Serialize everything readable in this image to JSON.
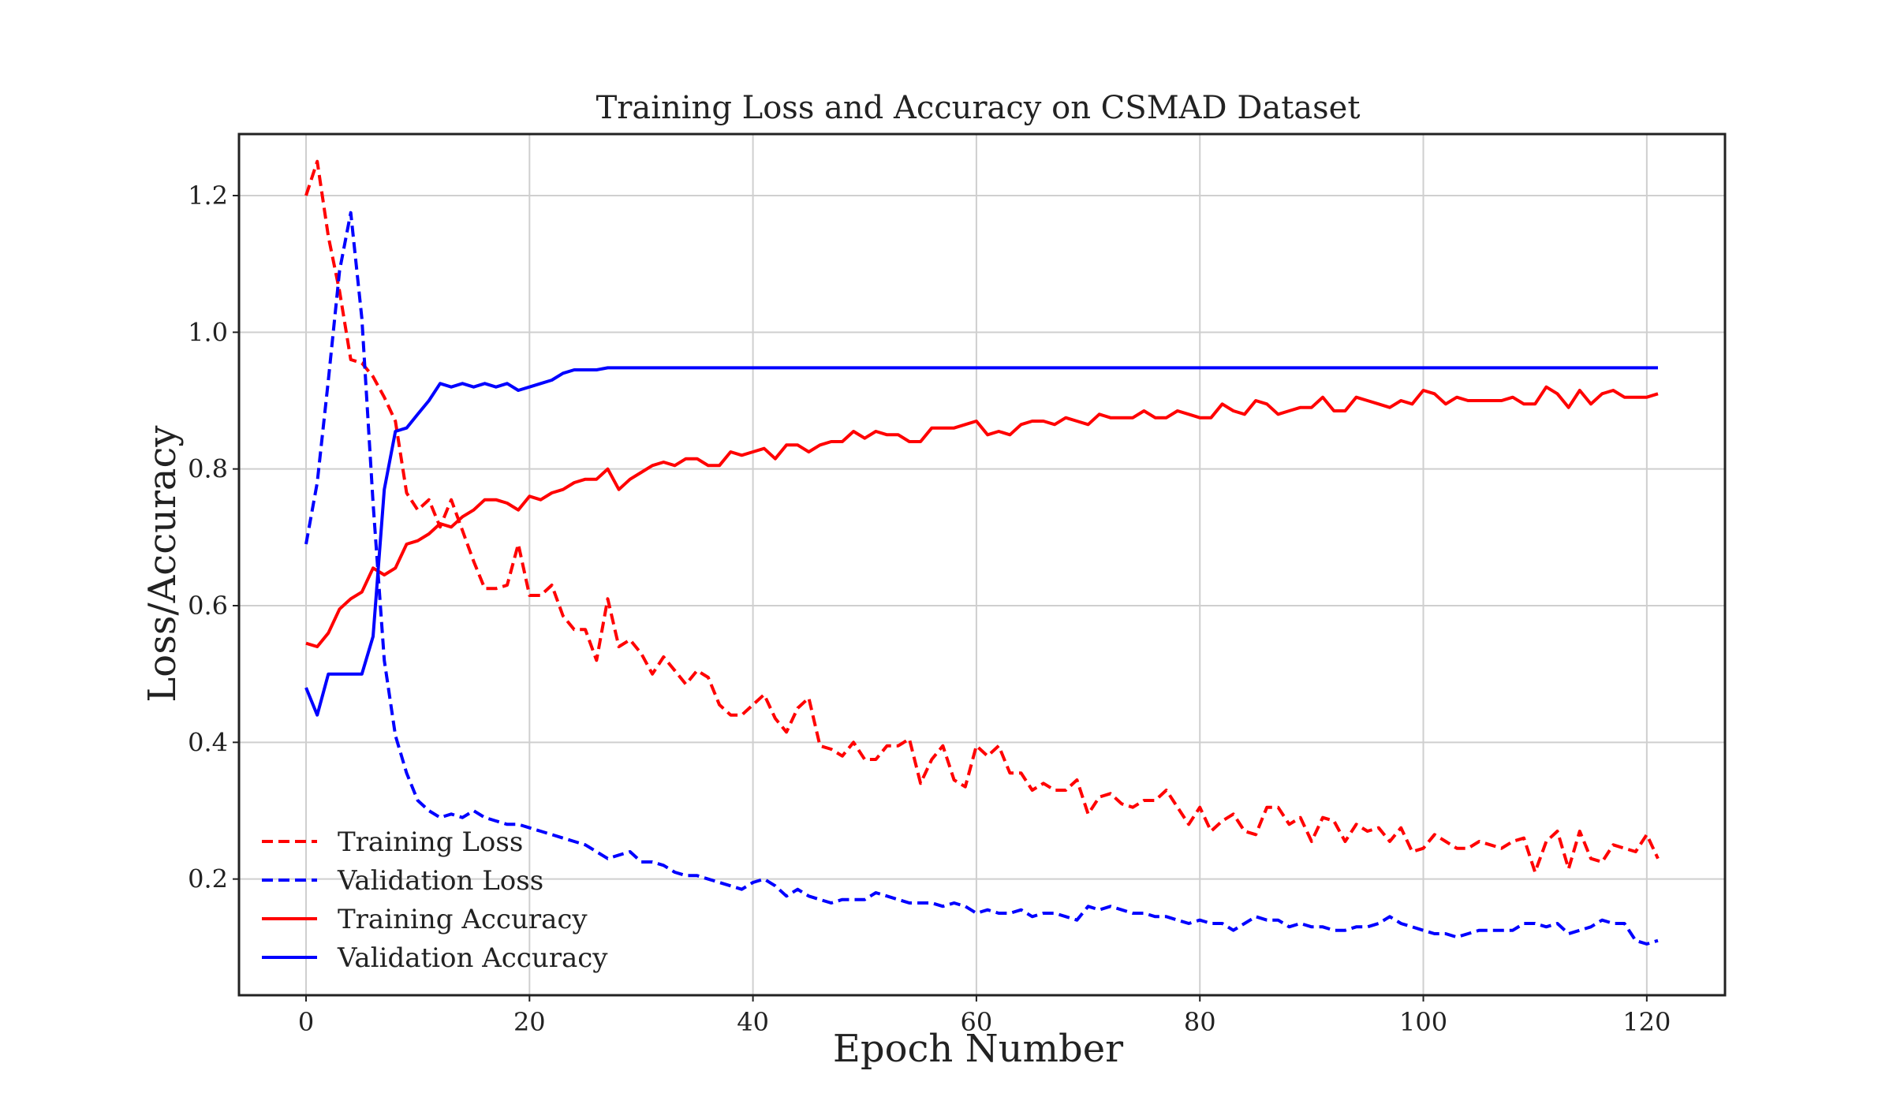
{
  "chart_data": {
    "type": "line",
    "title": "Training Loss and Accuracy on CSMAD Dataset",
    "xlabel": "Epoch Number",
    "ylabel": "Loss/Accuracy",
    "xlim": [
      -6,
      127
    ],
    "ylim": [
      0.03,
      1.29
    ],
    "x_ticks": [
      0,
      20,
      40,
      60,
      80,
      100,
      120
    ],
    "y_ticks": [
      0.2,
      0.4,
      0.6,
      0.8,
      1.0,
      1.2
    ],
    "x_tick_labels": [
      "0",
      "20",
      "40",
      "60",
      "80",
      "100",
      "120"
    ],
    "y_tick_labels": [
      "0.2",
      "0.4",
      "0.6",
      "0.8",
      "1.0",
      "1.2"
    ],
    "grid": true,
    "legend_position": "lower-left",
    "series": [
      {
        "name": "Training Loss",
        "color": "#ff0000",
        "dash": "dashed",
        "values": [
          1.2,
          1.25,
          1.14,
          1.06,
          0.96,
          0.955,
          0.935,
          0.905,
          0.87,
          0.765,
          0.74,
          0.755,
          0.715,
          0.755,
          0.71,
          0.665,
          0.625,
          0.625,
          0.63,
          0.69,
          0.615,
          0.615,
          0.63,
          0.585,
          0.565,
          0.565,
          0.52,
          0.61,
          0.54,
          0.55,
          0.53,
          0.5,
          0.525,
          0.505,
          0.485,
          0.505,
          0.495,
          0.455,
          0.44,
          0.44,
          0.455,
          0.47,
          0.435,
          0.415,
          0.45,
          0.465,
          0.395,
          0.39,
          0.38,
          0.4,
          0.375,
          0.375,
          0.395,
          0.395,
          0.405,
          0.34,
          0.375,
          0.395,
          0.345,
          0.335,
          0.395,
          0.38,
          0.395,
          0.355,
          0.355,
          0.33,
          0.34,
          0.33,
          0.33,
          0.345,
          0.295,
          0.32,
          0.325,
          0.31,
          0.305,
          0.315,
          0.315,
          0.33,
          0.305,
          0.28,
          0.305,
          0.27,
          0.285,
          0.295,
          0.27,
          0.265,
          0.305,
          0.305,
          0.28,
          0.29,
          0.255,
          0.29,
          0.285,
          0.255,
          0.28,
          0.27,
          0.275,
          0.255,
          0.275,
          0.24,
          0.245,
          0.265,
          0.255,
          0.245,
          0.245,
          0.255,
          0.25,
          0.245,
          0.255,
          0.26,
          0.21,
          0.255,
          0.27,
          0.215,
          0.27,
          0.23,
          0.225,
          0.25,
          0.245,
          0.24,
          0.265,
          0.23
        ]
      },
      {
        "name": "Validation Loss",
        "color": "#0000ff",
        "dash": "dashed",
        "values": [
          0.69,
          0.78,
          0.93,
          1.09,
          1.175,
          1.02,
          0.75,
          0.52,
          0.41,
          0.355,
          0.315,
          0.3,
          0.29,
          0.295,
          0.29,
          0.3,
          0.29,
          0.285,
          0.28,
          0.28,
          0.275,
          0.27,
          0.265,
          0.26,
          0.255,
          0.25,
          0.24,
          0.23,
          0.235,
          0.24,
          0.225,
          0.225,
          0.22,
          0.21,
          0.205,
          0.205,
          0.2,
          0.195,
          0.19,
          0.185,
          0.195,
          0.2,
          0.19,
          0.175,
          0.185,
          0.175,
          0.17,
          0.165,
          0.17,
          0.17,
          0.17,
          0.18,
          0.175,
          0.17,
          0.165,
          0.165,
          0.165,
          0.16,
          0.165,
          0.16,
          0.15,
          0.155,
          0.15,
          0.15,
          0.155,
          0.145,
          0.15,
          0.15,
          0.145,
          0.14,
          0.16,
          0.155,
          0.16,
          0.155,
          0.15,
          0.15,
          0.145,
          0.145,
          0.14,
          0.135,
          0.14,
          0.135,
          0.135,
          0.125,
          0.135,
          0.145,
          0.14,
          0.14,
          0.13,
          0.135,
          0.13,
          0.13,
          0.125,
          0.125,
          0.13,
          0.13,
          0.135,
          0.145,
          0.135,
          0.13,
          0.125,
          0.12,
          0.12,
          0.115,
          0.12,
          0.125,
          0.125,
          0.125,
          0.125,
          0.135,
          0.135,
          0.13,
          0.135,
          0.12,
          0.125,
          0.13,
          0.14,
          0.135,
          0.135,
          0.11,
          0.105,
          0.11
        ]
      },
      {
        "name": "Training Accuracy",
        "color": "#ff0000",
        "dash": "solid",
        "values": [
          0.545,
          0.54,
          0.56,
          0.595,
          0.61,
          0.62,
          0.655,
          0.645,
          0.655,
          0.69,
          0.695,
          0.705,
          0.72,
          0.715,
          0.73,
          0.74,
          0.755,
          0.755,
          0.75,
          0.74,
          0.76,
          0.755,
          0.765,
          0.77,
          0.78,
          0.785,
          0.785,
          0.8,
          0.77,
          0.785,
          0.795,
          0.805,
          0.81,
          0.805,
          0.815,
          0.815,
          0.805,
          0.805,
          0.825,
          0.82,
          0.825,
          0.83,
          0.815,
          0.835,
          0.835,
          0.825,
          0.835,
          0.84,
          0.84,
          0.855,
          0.845,
          0.855,
          0.85,
          0.85,
          0.84,
          0.84,
          0.86,
          0.86,
          0.86,
          0.865,
          0.87,
          0.85,
          0.855,
          0.85,
          0.865,
          0.87,
          0.87,
          0.865,
          0.875,
          0.87,
          0.865,
          0.88,
          0.875,
          0.875,
          0.875,
          0.885,
          0.875,
          0.875,
          0.885,
          0.88,
          0.875,
          0.875,
          0.895,
          0.885,
          0.88,
          0.9,
          0.895,
          0.88,
          0.885,
          0.89,
          0.89,
          0.905,
          0.885,
          0.885,
          0.905,
          0.9,
          0.895,
          0.89,
          0.9,
          0.895,
          0.915,
          0.91,
          0.895,
          0.905,
          0.9,
          0.9,
          0.9,
          0.9,
          0.905,
          0.895,
          0.895,
          0.92,
          0.91,
          0.89,
          0.915,
          0.895,
          0.91,
          0.915,
          0.905,
          0.905,
          0.905,
          0.91
        ]
      },
      {
        "name": "Validation Accuracy",
        "color": "#0000ff",
        "dash": "solid",
        "values": [
          0.48,
          0.44,
          0.5,
          0.5,
          0.5,
          0.5,
          0.555,
          0.77,
          0.855,
          0.86,
          0.88,
          0.9,
          0.925,
          0.92,
          0.925,
          0.92,
          0.925,
          0.92,
          0.925,
          0.915,
          0.92,
          0.925,
          0.93,
          0.94,
          0.945,
          0.945,
          0.945,
          0.948,
          0.948,
          0.948,
          0.948,
          0.948,
          0.948,
          0.948,
          0.948,
          0.948,
          0.948,
          0.948,
          0.948,
          0.948,
          0.948,
          0.948,
          0.948,
          0.948,
          0.948,
          0.948,
          0.948,
          0.948,
          0.948,
          0.948,
          0.948,
          0.948,
          0.948,
          0.948,
          0.948,
          0.948,
          0.948,
          0.948,
          0.948,
          0.948,
          0.948,
          0.948,
          0.948,
          0.948,
          0.948,
          0.948,
          0.948,
          0.948,
          0.948,
          0.948,
          0.948,
          0.948,
          0.948,
          0.948,
          0.948,
          0.948,
          0.948,
          0.948,
          0.948,
          0.948,
          0.948,
          0.948,
          0.948,
          0.948,
          0.948,
          0.948,
          0.948,
          0.948,
          0.948,
          0.948,
          0.948,
          0.948,
          0.948,
          0.948,
          0.948,
          0.948,
          0.948,
          0.948,
          0.948,
          0.948,
          0.948,
          0.948,
          0.948,
          0.948,
          0.948,
          0.948,
          0.948,
          0.948,
          0.948,
          0.948,
          0.948,
          0.948,
          0.948,
          0.948,
          0.948,
          0.948,
          0.948,
          0.948,
          0.948,
          0.948,
          0.948,
          0.948
        ]
      }
    ]
  }
}
